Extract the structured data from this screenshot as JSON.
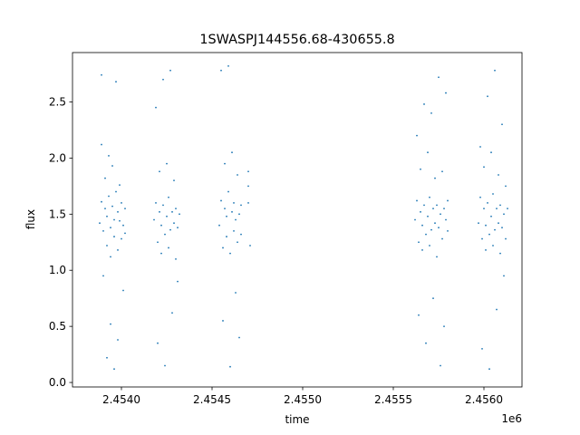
{
  "chart_data": {
    "type": "scatter",
    "title": "1SWASPJ144556.68-430655.8",
    "xlabel": "time",
    "ylabel": "flux",
    "x_offset_label": "1e6",
    "xlim": [
      2.45373,
      2.45621
    ],
    "ylim": [
      -0.04,
      2.94
    ],
    "grid": false,
    "legend": "none",
    "marker_color": "#1f77b4",
    "x_ticks": [
      {
        "value": 2.454,
        "label": "2.4540"
      },
      {
        "value": 2.4545,
        "label": "2.4545"
      },
      {
        "value": 2.455,
        "label": "2.4550"
      },
      {
        "value": 2.4555,
        "label": "2.4555"
      },
      {
        "value": 2.456,
        "label": "2.4560"
      }
    ],
    "y_ticks": [
      {
        "value": 0.0,
        "label": "0.0"
      },
      {
        "value": 0.5,
        "label": "0.5"
      },
      {
        "value": 1.0,
        "label": "1.0"
      },
      {
        "value": 1.5,
        "label": "1.5"
      },
      {
        "value": 2.0,
        "label": "2.0"
      },
      {
        "value": 2.5,
        "label": "2.5"
      }
    ],
    "series": [
      {
        "points": [
          [
            2.45388,
            1.42
          ],
          [
            2.45389,
            1.61
          ],
          [
            2.45389,
            2.12
          ],
          [
            2.45389,
            2.74
          ],
          [
            2.4539,
            1.35
          ],
          [
            2.4539,
            0.95
          ],
          [
            2.45391,
            1.55
          ],
          [
            2.45391,
            1.82
          ],
          [
            2.45392,
            1.22
          ],
          [
            2.45392,
            0.22
          ],
          [
            2.45392,
            1.48
          ],
          [
            2.45393,
            1.66
          ],
          [
            2.45393,
            2.02
          ],
          [
            2.45394,
            1.12
          ],
          [
            2.45394,
            1.38
          ],
          [
            2.45394,
            0.52
          ],
          [
            2.45395,
            1.57
          ],
          [
            2.45395,
            1.93
          ],
          [
            2.45396,
            1.3
          ],
          [
            2.45396,
            1.45
          ],
          [
            2.45396,
            0.12
          ],
          [
            2.45397,
            1.7
          ],
          [
            2.45397,
            2.68
          ],
          [
            2.45398,
            1.18
          ],
          [
            2.45398,
            1.52
          ],
          [
            2.45398,
            0.38
          ],
          [
            2.45399,
            1.44
          ],
          [
            2.45399,
            1.76
          ],
          [
            2.454,
            1.28
          ],
          [
            2.454,
            1.6
          ],
          [
            2.45401,
            1.4
          ],
          [
            2.45401,
            0.82
          ],
          [
            2.45402,
            1.55
          ],
          [
            2.45402,
            1.33
          ],
          [
            2.45418,
            1.45
          ],
          [
            2.45419,
            1.6
          ],
          [
            2.45419,
            2.45
          ],
          [
            2.4542,
            1.25
          ],
          [
            2.4542,
            0.35
          ],
          [
            2.45421,
            1.52
          ],
          [
            2.45421,
            1.88
          ],
          [
            2.45422,
            1.15
          ],
          [
            2.45422,
            1.4
          ],
          [
            2.45423,
            2.7
          ],
          [
            2.45423,
            1.58
          ],
          [
            2.45424,
            1.32
          ],
          [
            2.45424,
            0.15
          ],
          [
            2.45425,
            1.48
          ],
          [
            2.45425,
            1.95
          ],
          [
            2.45426,
            1.2
          ],
          [
            2.45426,
            1.65
          ],
          [
            2.45427,
            2.78
          ],
          [
            2.45427,
            1.36
          ],
          [
            2.45428,
            1.52
          ],
          [
            2.45428,
            0.62
          ],
          [
            2.45429,
            1.42
          ],
          [
            2.45429,
            1.8
          ],
          [
            2.4543,
            1.1
          ],
          [
            2.4543,
            1.55
          ],
          [
            2.45431,
            1.38
          ],
          [
            2.45431,
            0.9
          ],
          [
            2.45432,
            1.5
          ],
          [
            2.45454,
            1.4
          ],
          [
            2.45455,
            1.62
          ],
          [
            2.45455,
            2.78
          ],
          [
            2.45456,
            1.2
          ],
          [
            2.45456,
            0.55
          ],
          [
            2.45457,
            1.55
          ],
          [
            2.45457,
            1.95
          ],
          [
            2.45458,
            1.3
          ],
          [
            2.45458,
            1.48
          ],
          [
            2.45459,
            2.82
          ],
          [
            2.45459,
            1.7
          ],
          [
            2.4546,
            1.15
          ],
          [
            2.4546,
            0.14
          ],
          [
            2.45461,
            1.52
          ],
          [
            2.45461,
            2.05
          ],
          [
            2.45462,
            1.35
          ],
          [
            2.45462,
            1.6
          ],
          [
            2.45463,
            0.8
          ],
          [
            2.45463,
            1.45
          ],
          [
            2.45464,
            1.85
          ],
          [
            2.45464,
            1.25
          ],
          [
            2.45465,
            1.5
          ],
          [
            2.45465,
            0.4
          ],
          [
            2.45466,
            1.58
          ],
          [
            2.45466,
            1.32
          ],
          [
            2.4547,
            1.88
          ],
          [
            2.4547,
            1.75
          ],
          [
            2.4547,
            1.6
          ],
          [
            2.45471,
            1.22
          ],
          [
            2.45562,
            1.45
          ],
          [
            2.45563,
            1.62
          ],
          [
            2.45563,
            2.2
          ],
          [
            2.45564,
            1.25
          ],
          [
            2.45564,
            0.6
          ],
          [
            2.45565,
            1.52
          ],
          [
            2.45565,
            1.9
          ],
          [
            2.45566,
            1.18
          ],
          [
            2.45566,
            1.4
          ],
          [
            2.45567,
            2.48
          ],
          [
            2.45567,
            1.58
          ],
          [
            2.45568,
            1.32
          ],
          [
            2.45568,
            0.35
          ],
          [
            2.45569,
            1.48
          ],
          [
            2.45569,
            2.05
          ],
          [
            2.4557,
            1.22
          ],
          [
            2.4557,
            1.65
          ],
          [
            2.45571,
            2.4
          ],
          [
            2.45571,
            1.36
          ],
          [
            2.45572,
            1.55
          ],
          [
            2.45572,
            0.75
          ],
          [
            2.45573,
            1.42
          ],
          [
            2.45573,
            1.82
          ],
          [
            2.45574,
            1.12
          ],
          [
            2.45574,
            1.58
          ],
          [
            2.45575,
            2.72
          ],
          [
            2.45575,
            1.38
          ],
          [
            2.45576,
            0.15
          ],
          [
            2.45576,
            1.5
          ],
          [
            2.45577,
            1.88
          ],
          [
            2.45577,
            1.28
          ],
          [
            2.45578,
            1.55
          ],
          [
            2.45578,
            0.5
          ],
          [
            2.45579,
            1.45
          ],
          [
            2.45579,
            2.58
          ],
          [
            2.4558,
            1.35
          ],
          [
            2.4558,
            1.62
          ],
          [
            2.45597,
            1.42
          ],
          [
            2.45598,
            1.65
          ],
          [
            2.45598,
            2.1
          ],
          [
            2.45599,
            1.28
          ],
          [
            2.45599,
            0.3
          ],
          [
            2.456,
            1.55
          ],
          [
            2.456,
            1.92
          ],
          [
            2.45601,
            1.18
          ],
          [
            2.45601,
            1.4
          ],
          [
            2.45602,
            2.55
          ],
          [
            2.45602,
            1.6
          ],
          [
            2.45603,
            1.32
          ],
          [
            2.45603,
            0.12
          ],
          [
            2.45604,
            1.48
          ],
          [
            2.45604,
            2.05
          ],
          [
            2.45605,
            1.22
          ],
          [
            2.45605,
            1.68
          ],
          [
            2.45606,
            2.78
          ],
          [
            2.45606,
            1.36
          ],
          [
            2.45607,
            1.55
          ],
          [
            2.45607,
            0.65
          ],
          [
            2.45608,
            1.42
          ],
          [
            2.45608,
            1.85
          ],
          [
            2.45609,
            1.15
          ],
          [
            2.45609,
            1.58
          ],
          [
            2.4561,
            2.3
          ],
          [
            2.4561,
            1.38
          ],
          [
            2.45611,
            0.95
          ],
          [
            2.45611,
            1.5
          ],
          [
            2.45612,
            1.75
          ],
          [
            2.45612,
            1.28
          ],
          [
            2.45613,
            1.55
          ]
        ]
      }
    ]
  }
}
